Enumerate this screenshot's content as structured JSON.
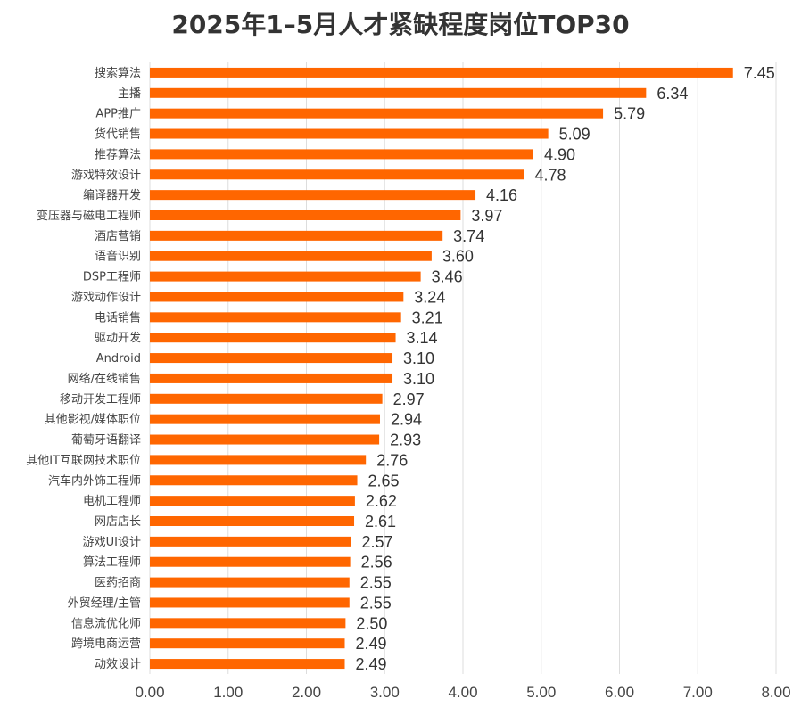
{
  "chart_data": {
    "type": "bar",
    "orientation": "horizontal",
    "title": "2025年1–5月人才紧缺程度岗位TOP30",
    "xlabel": "",
    "ylabel": "",
    "xlim": [
      0,
      8
    ],
    "xticks": [
      "0.00",
      "1.00",
      "2.00",
      "3.00",
      "4.00",
      "5.00",
      "6.00",
      "7.00",
      "8.00"
    ],
    "grid": "vertical",
    "bar_color": "#FF6600",
    "categories": [
      "搜索算法",
      "主播",
      "APP推广",
      "货代销售",
      "推荐算法",
      "游戏特效设计",
      "编译器开发",
      "变压器与磁电工程师",
      "酒店营销",
      "语音识别",
      "DSP工程师",
      "游戏动作设计",
      "电话销售",
      "驱动开发",
      "Android",
      "网络/在线销售",
      "移动开发工程师",
      "其他影视/媒体职位",
      "葡萄牙语翻译",
      "其他IT互联网技术职位",
      "汽车内外饰工程师",
      "电机工程师",
      "网店店长",
      "游戏UI设计",
      "算法工程师",
      "医药招商",
      "外贸经理/主管",
      "信息流优化师",
      "跨境电商运营",
      "动效设计"
    ],
    "values": [
      7.45,
      6.34,
      5.79,
      5.09,
      4.9,
      4.78,
      4.16,
      3.97,
      3.74,
      3.6,
      3.46,
      3.24,
      3.21,
      3.14,
      3.1,
      3.1,
      2.97,
      2.94,
      2.93,
      2.76,
      2.65,
      2.62,
      2.61,
      2.57,
      2.56,
      2.55,
      2.55,
      2.5,
      2.49,
      2.49
    ],
    "value_labels": [
      "7.45",
      "6.34",
      "5.79",
      "5.09",
      "4.90",
      "4.78",
      "4.16",
      "3.97",
      "3.74",
      "3.60",
      "3.46",
      "3.24",
      "3.21",
      "3.14",
      "3.10",
      "3.10",
      "2.97",
      "2.94",
      "2.93",
      "2.76",
      "2.65",
      "2.62",
      "2.61",
      "2.57",
      "2.56",
      "2.55",
      "2.55",
      "2.50",
      "2.49",
      "2.49"
    ]
  }
}
